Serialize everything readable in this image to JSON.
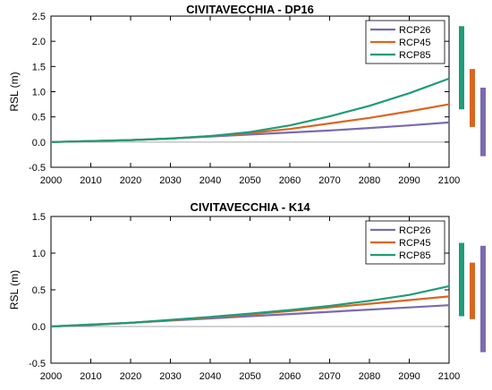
{
  "chart_data": [
    {
      "type": "line",
      "title": "CIVITAVECCHIA - DP16",
      "xlabel": "",
      "ylabel": "RSL (m)",
      "xlim": [
        2000,
        2100
      ],
      "ylim": [
        -0.5,
        2.5
      ],
      "xticks": [
        2000,
        2010,
        2020,
        2030,
        2040,
        2050,
        2060,
        2070,
        2080,
        2090,
        2100
      ],
      "yticks": [
        -0.5,
        0.0,
        0.5,
        1.0,
        1.5,
        2.0,
        2.5
      ],
      "ytick_labels": [
        "-0.5",
        "0.0",
        "0.5",
        "1.0",
        "1.5",
        "2.0",
        "2.5"
      ],
      "grid": false,
      "zero_line": true,
      "legend_position": "top-right",
      "x": [
        2000,
        2010,
        2020,
        2030,
        2040,
        2050,
        2060,
        2070,
        2080,
        2090,
        2100
      ],
      "series": [
        {
          "name": "RCP26",
          "color": "#7b6aaf",
          "values": [
            0.0,
            0.02,
            0.04,
            0.07,
            0.11,
            0.15,
            0.19,
            0.23,
            0.28,
            0.33,
            0.39
          ]
        },
        {
          "name": "RCP45",
          "color": "#d9661f",
          "values": [
            0.0,
            0.02,
            0.04,
            0.07,
            0.12,
            0.18,
            0.26,
            0.37,
            0.48,
            0.61,
            0.75
          ]
        },
        {
          "name": "RCP85",
          "color": "#1f9c78",
          "values": [
            0.0,
            0.02,
            0.04,
            0.07,
            0.12,
            0.2,
            0.33,
            0.51,
            0.72,
            0.97,
            1.26
          ]
        }
      ],
      "range_bars": [
        {
          "series": "RCP85",
          "color": "#1f9c78",
          "low": 0.65,
          "high": 2.3
        },
        {
          "series": "RCP45",
          "color": "#d9661f",
          "low": 0.3,
          "high": 1.45
        },
        {
          "series": "RCP26",
          "color": "#7b6aaf",
          "low": -0.28,
          "high": 1.08
        }
      ]
    },
    {
      "type": "line",
      "title": "CIVITAVECCHIA - K14",
      "xlabel": "",
      "ylabel": "RSL (m)",
      "xlim": [
        2000,
        2100
      ],
      "ylim": [
        -0.5,
        1.5
      ],
      "xticks": [
        2000,
        2010,
        2020,
        2030,
        2040,
        2050,
        2060,
        2070,
        2080,
        2090,
        2100
      ],
      "yticks": [
        -0.5,
        0.0,
        0.5,
        1.0,
        1.5
      ],
      "ytick_labels": [
        "-0.5",
        "0.0",
        "0.5",
        "1.0",
        "1.5"
      ],
      "grid": false,
      "zero_line": true,
      "legend_position": "top-right",
      "x": [
        2000,
        2010,
        2020,
        2030,
        2040,
        2050,
        2060,
        2070,
        2080,
        2090,
        2100
      ],
      "series": [
        {
          "name": "RCP26",
          "color": "#7b6aaf",
          "values": [
            0.0,
            0.02,
            0.05,
            0.08,
            0.11,
            0.14,
            0.17,
            0.2,
            0.23,
            0.26,
            0.29
          ]
        },
        {
          "name": "RCP45",
          "color": "#d9661f",
          "values": [
            0.0,
            0.025,
            0.05,
            0.085,
            0.125,
            0.165,
            0.21,
            0.26,
            0.31,
            0.36,
            0.41
          ]
        },
        {
          "name": "RCP85",
          "color": "#1f9c78",
          "values": [
            0.0,
            0.025,
            0.05,
            0.09,
            0.13,
            0.175,
            0.225,
            0.28,
            0.35,
            0.43,
            0.55
          ]
        }
      ],
      "range_bars": [
        {
          "series": "RCP85",
          "color": "#1f9c78",
          "low": 0.14,
          "high": 1.14
        },
        {
          "series": "RCP45",
          "color": "#d9661f",
          "low": 0.1,
          "high": 0.87
        },
        {
          "series": "RCP26",
          "color": "#7b6aaf",
          "low": -0.35,
          "high": 1.1
        }
      ]
    }
  ]
}
